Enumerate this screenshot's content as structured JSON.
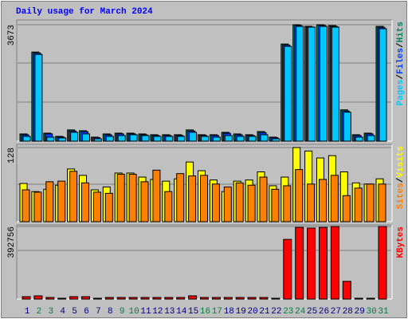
{
  "chart_data": [
    {
      "type": "bar",
      "title": "Daily usage for March 2024",
      "title_color": "#0000ff",
      "ylim": [
        0,
        3673
      ],
      "yticks": [
        3673
      ],
      "legend_separator": "/",
      "series": [
        {
          "name": "Hits",
          "color": "#00805c",
          "values": [
            228,
            2812,
            253,
            152,
            355,
            329,
            127,
            228,
            253,
            253,
            228,
            203,
            203,
            203,
            355,
            203,
            203,
            279,
            228,
            203,
            304,
            127,
            3065,
            3673,
            3622,
            3673,
            3648,
            988,
            203,
            253,
            3622
          ]
        },
        {
          "name": "Files",
          "color": "#0040ff",
          "values": [
            200,
            2780,
            230,
            130,
            320,
            300,
            110,
            200,
            230,
            230,
            200,
            180,
            180,
            180,
            320,
            180,
            180,
            250,
            200,
            180,
            270,
            110,
            3030,
            3650,
            3600,
            3650,
            3620,
            950,
            180,
            230,
            3590
          ]
        },
        {
          "name": "Pages",
          "color": "#00c8ff",
          "values": [
            152,
            2736,
            127,
            101,
            279,
            228,
            76,
            152,
            177,
            203,
            177,
            152,
            152,
            152,
            279,
            152,
            127,
            177,
            152,
            152,
            203,
            76,
            2989,
            3622,
            3597,
            3622,
            3597,
            912,
            127,
            177,
            3546
          ]
        }
      ],
      "legend_order": [
        2,
        1,
        0
      ]
    },
    {
      "type": "bar",
      "ylim": [
        0,
        128
      ],
      "yticks": [
        128
      ],
      "legend_separator": "/",
      "series": [
        {
          "name": "Visits",
          "color": "#ffff00",
          "values": [
            66,
            52,
            56,
            63,
            91,
            80,
            55,
            60,
            84,
            84,
            77,
            73,
            70,
            74,
            103,
            88,
            72,
            52,
            70,
            72,
            86,
            62,
            77,
            128,
            122,
            110,
            114,
            86,
            67,
            65,
            74
          ]
        },
        {
          "name": "Sites",
          "color": "#ff8000",
          "values": [
            55,
            51,
            69,
            70,
            87,
            67,
            51,
            49,
            82,
            82,
            69,
            89,
            52,
            83,
            79,
            80,
            65,
            60,
            67,
            63,
            77,
            56,
            62,
            90,
            65,
            73,
            80,
            45,
            58,
            65,
            65
          ]
        }
      ],
      "legend_order": [
        1,
        0
      ]
    },
    {
      "type": "bar",
      "ylim": [
        0,
        392756
      ],
      "yticks": [
        392756
      ],
      "series": [
        {
          "name": "KBytes",
          "color": "#ff0000",
          "values": [
            13000,
            17500,
            8700,
            4400,
            13000,
            13000,
            4400,
            8700,
            8700,
            8700,
            8700,
            8700,
            8700,
            8700,
            17500,
            8700,
            8700,
            8700,
            8700,
            8700,
            8700,
            4400,
            323000,
            388000,
            384000,
            388000,
            392756,
            96000,
            4400,
            4400,
            392756
          ]
        }
      ],
      "legend_order": [
        0
      ],
      "categories": [
        "1",
        "2",
        "3",
        "4",
        "5",
        "6",
        "7",
        "8",
        "9",
        "10",
        "11",
        "12",
        "13",
        "14",
        "15",
        "16",
        "17",
        "18",
        "19",
        "20",
        "21",
        "22",
        "23",
        "24",
        "25",
        "26",
        "27",
        "28",
        "29",
        "30",
        "31"
      ],
      "category_colors": [
        "#000080",
        "#008040",
        "#008040",
        "#000080",
        "#000080",
        "#000080",
        "#000080",
        "#000080",
        "#008040",
        "#008040",
        "#000080",
        "#000080",
        "#000080",
        "#000080",
        "#000080",
        "#008040",
        "#008040",
        "#000080",
        "#000080",
        "#000080",
        "#000080",
        "#000080",
        "#008040",
        "#008040",
        "#000080",
        "#000080",
        "#000080",
        "#000080",
        "#000080",
        "#008040",
        "#008040"
      ]
    }
  ]
}
